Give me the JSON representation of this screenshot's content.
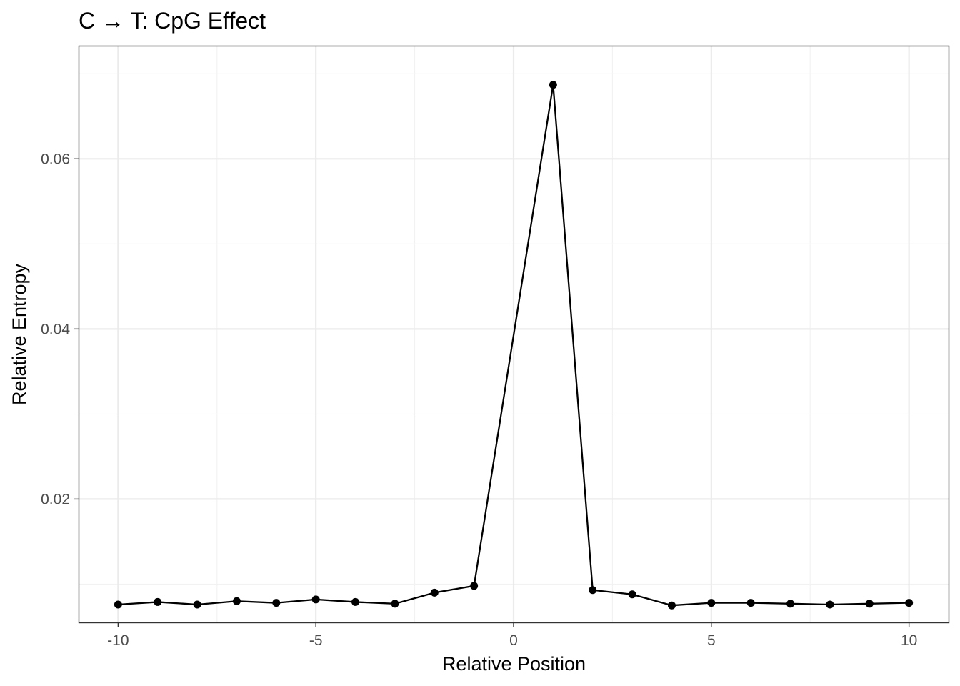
{
  "chart_data": {
    "type": "line",
    "title": "C → T: CpG Effect",
    "xlabel": "Relative Position",
    "ylabel": "Relative Entropy",
    "xlim": [
      -11.0,
      11.0
    ],
    "ylim": [
      0.0055,
      0.0733
    ],
    "x_ticks": [
      -10,
      -5,
      0,
      5,
      10
    ],
    "x_tick_labels": [
      "-10",
      "-5",
      "0",
      "5",
      "10"
    ],
    "x_minor": [
      -7.5,
      -2.5,
      2.5,
      7.5
    ],
    "y_ticks": [
      0.02,
      0.04,
      0.06
    ],
    "y_tick_labels": [
      "0.02",
      "0.04",
      "0.06"
    ],
    "y_minor": [
      0.01,
      0.03,
      0.05,
      0.07
    ],
    "grid": true,
    "legend": "none",
    "series": [
      {
        "color": "#000000",
        "x": [
          -10,
          -9,
          -8,
          -7,
          -6,
          -5,
          -4,
          -3,
          -2,
          -1,
          1,
          2,
          3,
          4,
          5,
          6,
          7,
          8,
          9,
          10
        ],
        "values": [
          0.0076,
          0.0079,
          0.0076,
          0.008,
          0.0078,
          0.0082,
          0.0079,
          0.0077,
          0.009,
          0.0098,
          0.0687,
          0.0093,
          0.0088,
          0.0075,
          0.0078,
          0.0078,
          0.0077,
          0.0076,
          0.0077,
          0.0078
        ]
      }
    ]
  }
}
